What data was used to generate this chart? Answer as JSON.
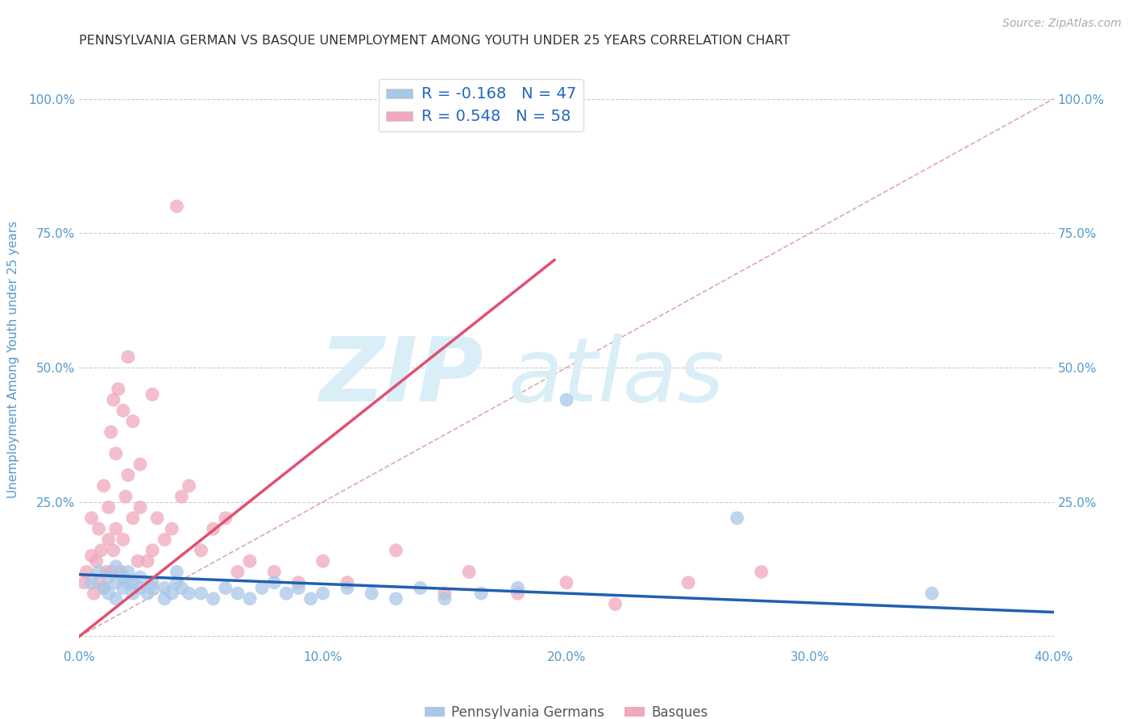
{
  "title": "PENNSYLVANIA GERMAN VS BASQUE UNEMPLOYMENT AMONG YOUTH UNDER 25 YEARS CORRELATION CHART",
  "source": "Source: ZipAtlas.com",
  "ylabel": "Unemployment Among Youth under 25 years",
  "xlim": [
    0.0,
    0.4
  ],
  "ylim": [
    -0.02,
    1.05
  ],
  "legend1_r": "-0.168",
  "legend1_n": "47",
  "legend2_r": "0.548",
  "legend2_n": "58",
  "blue_color": "#a8c8e8",
  "pink_color": "#f0a8bc",
  "blue_line_color": "#2060b0",
  "pink_line_color": "#e05070",
  "grid_color": "#cccccc",
  "diagonal_color": "#ddaaaa",
  "watermark_zip_color": "#daeef8",
  "watermark_atlas_color": "#daeef8",
  "title_color": "#333333",
  "source_color": "#aaaaaa",
  "axis_tick_color": "#5599cc",
  "ylabel_color": "#5599cc",
  "legend_text_color": "#2266bb",
  "bg_color": "#ffffff",
  "blue_scatter_x": [
    0.005,
    0.008,
    0.01,
    0.012,
    0.012,
    0.015,
    0.015,
    0.015,
    0.018,
    0.018,
    0.02,
    0.02,
    0.022,
    0.022,
    0.025,
    0.025,
    0.028,
    0.03,
    0.03,
    0.035,
    0.035,
    0.038,
    0.04,
    0.04,
    0.042,
    0.045,
    0.05,
    0.055,
    0.06,
    0.065,
    0.07,
    0.075,
    0.08,
    0.085,
    0.09,
    0.095,
    0.1,
    0.11,
    0.12,
    0.13,
    0.14,
    0.15,
    0.165,
    0.18,
    0.2,
    0.27,
    0.35
  ],
  "blue_scatter_y": [
    0.1,
    0.12,
    0.09,
    0.11,
    0.08,
    0.1,
    0.13,
    0.07,
    0.11,
    0.09,
    0.1,
    0.12,
    0.08,
    0.1,
    0.09,
    0.11,
    0.08,
    0.1,
    0.09,
    0.07,
    0.09,
    0.08,
    0.1,
    0.12,
    0.09,
    0.08,
    0.08,
    0.07,
    0.09,
    0.08,
    0.07,
    0.09,
    0.1,
    0.08,
    0.09,
    0.07,
    0.08,
    0.09,
    0.08,
    0.07,
    0.09,
    0.07,
    0.08,
    0.09,
    0.44,
    0.22,
    0.08
  ],
  "pink_scatter_x": [
    0.002,
    0.003,
    0.005,
    0.005,
    0.006,
    0.007,
    0.008,
    0.008,
    0.009,
    0.01,
    0.01,
    0.011,
    0.012,
    0.012,
    0.013,
    0.013,
    0.014,
    0.014,
    0.015,
    0.015,
    0.016,
    0.017,
    0.018,
    0.018,
    0.019,
    0.02,
    0.02,
    0.022,
    0.022,
    0.024,
    0.025,
    0.025,
    0.028,
    0.03,
    0.03,
    0.032,
    0.035,
    0.038,
    0.04,
    0.042,
    0.045,
    0.05,
    0.055,
    0.06,
    0.065,
    0.07,
    0.08,
    0.09,
    0.1,
    0.11,
    0.13,
    0.15,
    0.16,
    0.18,
    0.2,
    0.22,
    0.25,
    0.28
  ],
  "pink_scatter_y": [
    0.1,
    0.12,
    0.22,
    0.15,
    0.08,
    0.14,
    0.2,
    0.1,
    0.16,
    0.28,
    0.09,
    0.12,
    0.24,
    0.18,
    0.38,
    0.12,
    0.44,
    0.16,
    0.34,
    0.2,
    0.46,
    0.12,
    0.42,
    0.18,
    0.26,
    0.3,
    0.52,
    0.22,
    0.4,
    0.14,
    0.32,
    0.24,
    0.14,
    0.16,
    0.45,
    0.22,
    0.18,
    0.2,
    0.8,
    0.26,
    0.28,
    0.16,
    0.2,
    0.22,
    0.12,
    0.14,
    0.12,
    0.1,
    0.14,
    0.1,
    0.16,
    0.08,
    0.12,
    0.08,
    0.1,
    0.06,
    0.1,
    0.12
  ],
  "blue_line": {
    "x0": 0.0,
    "x1": 0.4,
    "y0": 0.115,
    "y1": 0.045
  },
  "pink_line": {
    "x0": 0.0,
    "x1": 0.195,
    "y0": 0.0,
    "y1": 0.7
  },
  "diagonal_line": {
    "x0": 0.0,
    "x1": 0.4,
    "y0": 0.0,
    "y1": 1.0
  }
}
